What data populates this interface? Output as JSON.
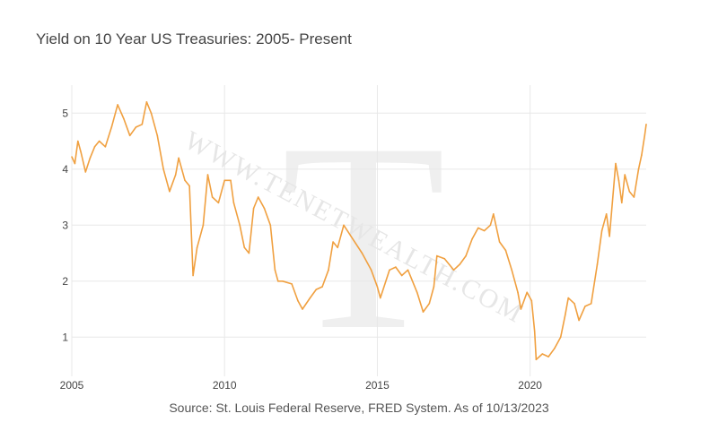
{
  "chart_data": {
    "type": "line",
    "title": "Yield on 10 Year US Treasuries: 2005- Present",
    "source": "Source: St. Louis Federal Reserve, FRED System. As of 10/13/2023",
    "watermark": {
      "letter": "T",
      "text": "WWW.TENETWEALTH.COM"
    },
    "xlabel": "",
    "ylabel": "",
    "xlim": [
      2005.0,
      2023.8
    ],
    "ylim": [
      0.3,
      5.5
    ],
    "x_ticks": [
      2005,
      2010,
      2015,
      2020
    ],
    "y_ticks": [
      1,
      2,
      3,
      4,
      5
    ],
    "grid": true,
    "line_color": "#f0a040",
    "series": [
      {
        "x": [
          2005.0,
          2005.1,
          2005.2,
          2005.3,
          2005.45,
          2005.6,
          2005.75,
          2005.9,
          2006.1,
          2006.3,
          2006.5,
          2006.7,
          2006.9,
          2007.1,
          2007.3,
          2007.45,
          2007.6,
          2007.8,
          2008.0,
          2008.2,
          2008.4,
          2008.5,
          2008.7,
          2008.85,
          2008.97,
          2009.1,
          2009.3,
          2009.45,
          2009.6,
          2009.8,
          2010.0,
          2010.2,
          2010.3,
          2010.5,
          2010.65,
          2010.8,
          2010.95,
          2011.1,
          2011.3,
          2011.5,
          2011.65,
          2011.75,
          2011.9,
          2012.2,
          2012.4,
          2012.55,
          2012.8,
          2013.0,
          2013.2,
          2013.4,
          2013.55,
          2013.7,
          2013.9,
          2014.2,
          2014.5,
          2014.8,
          2015.0,
          2015.1,
          2015.4,
          2015.6,
          2015.8,
          2016.0,
          2016.3,
          2016.5,
          2016.7,
          2016.85,
          2016.95,
          2017.2,
          2017.5,
          2017.7,
          2017.9,
          2018.1,
          2018.3,
          2018.5,
          2018.7,
          2018.8,
          2019.0,
          2019.2,
          2019.4,
          2019.6,
          2019.7,
          2019.9,
          2020.05,
          2020.15,
          2020.2,
          2020.4,
          2020.6,
          2020.8,
          2021.0,
          2021.15,
          2021.25,
          2021.45,
          2021.6,
          2021.8,
          2022.0,
          2022.2,
          2022.35,
          2022.5,
          2022.6,
          2022.8,
          2022.9,
          2023.0,
          2023.1,
          2023.25,
          2023.4,
          2023.55,
          2023.65,
          2023.75,
          2023.8
        ],
        "y": [
          4.22,
          4.1,
          4.5,
          4.3,
          3.95,
          4.2,
          4.4,
          4.5,
          4.4,
          4.75,
          5.15,
          4.9,
          4.6,
          4.75,
          4.8,
          5.2,
          5.0,
          4.6,
          4.0,
          3.6,
          3.9,
          4.2,
          3.8,
          3.7,
          2.1,
          2.6,
          3.0,
          3.9,
          3.5,
          3.4,
          3.8,
          3.8,
          3.4,
          3.0,
          2.6,
          2.5,
          3.3,
          3.5,
          3.3,
          3.0,
          2.2,
          2.0,
          2.0,
          1.95,
          1.65,
          1.5,
          1.7,
          1.85,
          1.9,
          2.2,
          2.7,
          2.6,
          3.0,
          2.75,
          2.5,
          2.2,
          1.9,
          1.7,
          2.2,
          2.25,
          2.1,
          2.2,
          1.8,
          1.45,
          1.6,
          1.9,
          2.45,
          2.4,
          2.2,
          2.3,
          2.45,
          2.75,
          2.95,
          2.9,
          3.0,
          3.2,
          2.7,
          2.55,
          2.2,
          1.8,
          1.5,
          1.8,
          1.65,
          1.1,
          0.6,
          0.7,
          0.65,
          0.8,
          1.0,
          1.4,
          1.7,
          1.6,
          1.3,
          1.55,
          1.6,
          2.3,
          2.9,
          3.2,
          2.8,
          4.1,
          3.8,
          3.4,
          3.9,
          3.6,
          3.5,
          4.0,
          4.25,
          4.6,
          4.8
        ]
      }
    ]
  }
}
